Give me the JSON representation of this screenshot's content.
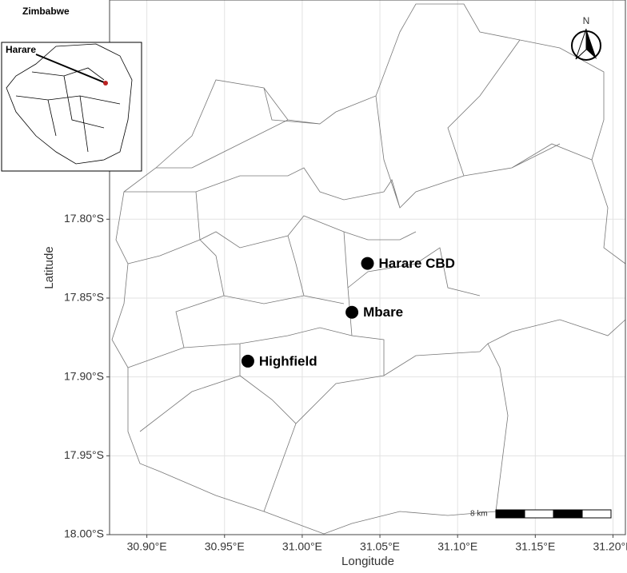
{
  "chart_data": {
    "type": "map",
    "inset": {
      "title": "Zimbabwe",
      "label": "Harare"
    },
    "north_label": "N",
    "scale_label": "8 km",
    "x_label": "Longitude",
    "y_label": "Latitude",
    "xlim": [
      30.876,
      31.208
    ],
    "ylim": [
      -18.0,
      -17.661
    ],
    "xticks": [
      {
        "value": 30.9,
        "label": "30.90°E"
      },
      {
        "value": 30.95,
        "label": "30.95°E"
      },
      {
        "value": 31.0,
        "label": "31.00°E"
      },
      {
        "value": 31.05,
        "label": "31.05°E"
      },
      {
        "value": 31.1,
        "label": "31.10°E"
      },
      {
        "value": 31.15,
        "label": "31.15°E"
      },
      {
        "value": 31.2,
        "label": "31.20°E"
      }
    ],
    "yticks": [
      {
        "value": -17.8,
        "label": "17.80°S"
      },
      {
        "value": -17.85,
        "label": "17.85°S"
      },
      {
        "value": -17.9,
        "label": "17.90°S"
      },
      {
        "value": -17.95,
        "label": "17.95°S"
      },
      {
        "value": -18.0,
        "label": "18.00°S"
      }
    ],
    "grid": true,
    "points": {
      "names": [
        "Harare CBD",
        "Mbare",
        "Highfield"
      ],
      "x": [
        31.042,
        31.032,
        30.965
      ],
      "y": [
        -17.828,
        -17.859,
        -17.89
      ],
      "color": "#000000"
    }
  }
}
